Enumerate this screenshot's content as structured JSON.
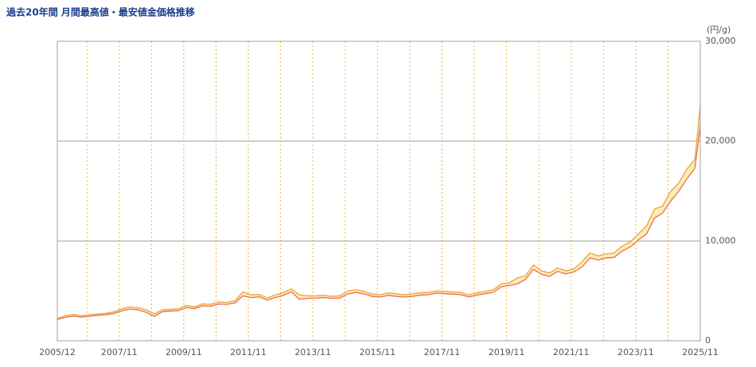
{
  "chart_data": {
    "type": "range-line",
    "title": "過去20年間 月間最高値・最安値金価格推移",
    "y_unit": "(円/g)",
    "x": [
      "2005/12",
      "2006/03",
      "2006/06",
      "2006/09",
      "2006/12",
      "2007/03",
      "2007/06",
      "2007/09",
      "2007/12",
      "2008/03",
      "2008/06",
      "2008/09",
      "2008/12",
      "2009/03",
      "2009/06",
      "2009/09",
      "2009/12",
      "2010/03",
      "2010/06",
      "2010/09",
      "2010/12",
      "2011/03",
      "2011/06",
      "2011/09",
      "2011/12",
      "2012/03",
      "2012/06",
      "2012/09",
      "2012/12",
      "2013/03",
      "2013/06",
      "2013/09",
      "2013/12",
      "2014/03",
      "2014/06",
      "2014/09",
      "2014/12",
      "2015/03",
      "2015/06",
      "2015/09",
      "2015/12",
      "2016/03",
      "2016/06",
      "2016/09",
      "2016/12",
      "2017/03",
      "2017/06",
      "2017/09",
      "2017/12",
      "2018/03",
      "2018/06",
      "2018/09",
      "2018/12",
      "2019/03",
      "2019/06",
      "2019/09",
      "2019/12",
      "2020/03",
      "2020/06",
      "2020/09",
      "2020/12",
      "2021/03",
      "2021/06",
      "2021/09",
      "2021/12",
      "2022/03",
      "2022/06",
      "2022/09",
      "2022/12",
      "2023/03",
      "2023/06",
      "2023/09",
      "2023/12",
      "2024/03",
      "2024/06",
      "2024/09",
      "2024/12",
      "2025/03",
      "2025/06",
      "2025/09",
      "2025/11"
    ],
    "series": [
      {
        "color": "#f0a040",
        "values": [
          2250,
          2500,
          2650,
          2500,
          2600,
          2700,
          2750,
          2900,
          3200,
          3400,
          3300,
          3100,
          2700,
          3100,
          3150,
          3200,
          3550,
          3400,
          3700,
          3650,
          3900,
          3850,
          4000,
          4900,
          4600,
          4650,
          4300,
          4600,
          4800,
          5200,
          4600,
          4500,
          4500,
          4550,
          4450,
          4500,
          5000,
          5100,
          4950,
          4700,
          4600,
          4800,
          4700,
          4600,
          4700,
          4800,
          4850,
          5000,
          4950,
          4900,
          4850,
          4600,
          4800,
          4950,
          5100,
          5700,
          5800,
          6300,
          6500,
          7600,
          7000,
          6800,
          7300,
          7000,
          7200,
          7900,
          8800,
          8500,
          8700,
          8800,
          9500,
          9900,
          10700,
          11500,
          13200,
          13500,
          15000,
          15800,
          17200,
          18200,
          23600
        ]
      },
      {
        "color": "#e8704a",
        "values": [
          2130,
          2350,
          2480,
          2370,
          2460,
          2560,
          2600,
          2740,
          3000,
          3180,
          3100,
          2850,
          2450,
          2900,
          2980,
          3020,
          3330,
          3220,
          3500,
          3460,
          3680,
          3650,
          3780,
          4500,
          4330,
          4400,
          4080,
          4350,
          4550,
          4900,
          4150,
          4250,
          4280,
          4330,
          4250,
          4280,
          4700,
          4850,
          4700,
          4450,
          4380,
          4550,
          4450,
          4380,
          4450,
          4580,
          4620,
          4780,
          4720,
          4680,
          4620,
          4400,
          4580,
          4720,
          4850,
          5400,
          5550,
          5700,
          6150,
          7150,
          6650,
          6450,
          6950,
          6700,
          6900,
          7400,
          8300,
          8100,
          8300,
          8350,
          9000,
          9400,
          10100,
          10700,
          12300,
          12800,
          14000,
          15000,
          16200,
          17300,
          21500
        ]
      }
    ],
    "band_color": "#fcecb8",
    "xlim": [
      "2005/12",
      "2025/11"
    ],
    "xticks": [
      "2005/12",
      {
        "value": "2006/11",
        "label": null
      },
      "2007/11",
      {
        "value": "2008/11",
        "label": null
      },
      "2009/11",
      {
        "value": "2010/11",
        "label": null
      },
      "2011/11",
      {
        "value": "2012/11",
        "label": null
      },
      "2013/11",
      {
        "value": "2014/11",
        "label": null
      },
      "2015/11",
      {
        "value": "2016/11",
        "label": null
      },
      "2017/11",
      {
        "value": "2018/11",
        "label": null
      },
      "2019/11",
      {
        "value": "2020/11",
        "label": null
      },
      "2021/11",
      {
        "value": "2022/11",
        "label": null
      },
      "2023/11",
      {
        "value": "2024/11",
        "label": null
      },
      "2025/11"
    ],
    "ylim": [
      0,
      30000
    ],
    "yticks": [
      0,
      {
        "value": 10000,
        "label": "10,000"
      },
      {
        "value": 20000,
        "label": "20,000"
      },
      {
        "value": 30000,
        "label": "30,000"
      }
    ],
    "grid": true
  }
}
